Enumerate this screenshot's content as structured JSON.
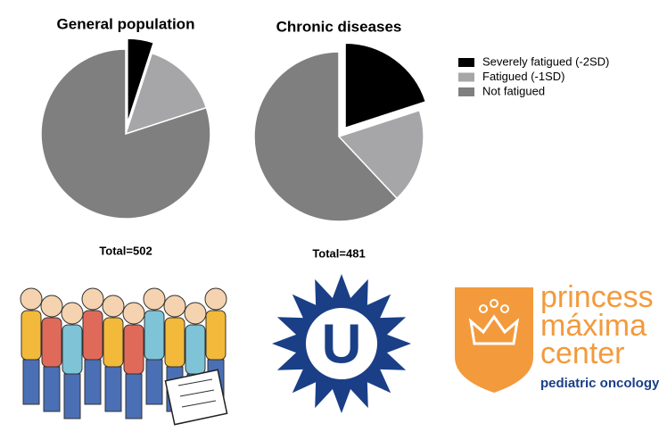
{
  "chart_data": [
    {
      "type": "pie",
      "title": "General population",
      "total": "Total=502",
      "categories": [
        "Severely fatigued (-2SD)",
        "Fatigued (-1SD)",
        "Not fatigued"
      ],
      "values": [
        5,
        15,
        80
      ],
      "colors": [
        "#000000",
        "#a6a6a8",
        "#7f7f7f"
      ],
      "explode": [
        true,
        false,
        false
      ],
      "legend": "right"
    },
    {
      "type": "pie",
      "title": "Chronic diseases",
      "total": "Total=481",
      "categories": [
        "Severely fatigued (-2SD)",
        "Fatigued (-1SD)",
        "Not fatigued"
      ],
      "values": [
        20,
        18,
        62
      ],
      "colors": [
        "#000000",
        "#a6a6a8",
        "#7f7f7f"
      ],
      "explode": [
        true,
        false,
        false
      ]
    }
  ],
  "logos": {
    "princess_line1": "princess",
    "princess_line2": "máxima",
    "princess_line3": "center",
    "princess_sub": "pediatric oncology",
    "utrecht_letter": "U"
  }
}
